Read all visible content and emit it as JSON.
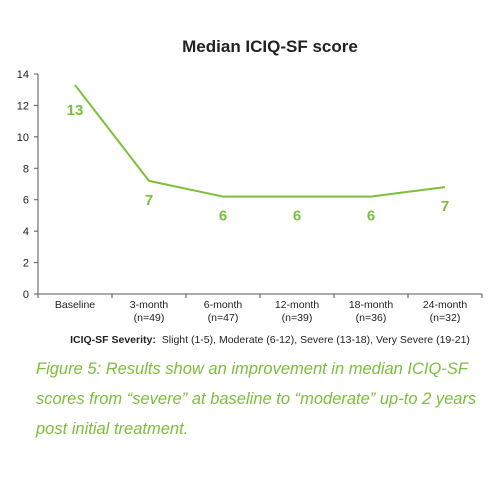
{
  "colors": {
    "line": "#7bbf3a",
    "axis": "#555555",
    "text": "#222222",
    "caption": "#7bbf3a"
  },
  "chart_data": {
    "type": "line",
    "title": "Median ICIQ-SF score",
    "xlabel": "",
    "ylabel": "",
    "categories": [
      "Baseline",
      "3-month",
      "6-month",
      "12-month",
      "18-month",
      "24-month"
    ],
    "category_sublabels": [
      "",
      "(n=49)",
      "(n=47)",
      "(n=39)",
      "(n=36)",
      "(n=32)"
    ],
    "series": [
      {
        "values": [
          13.3,
          7.2,
          6.2,
          6.2,
          6.2,
          6.8
        ]
      }
    ],
    "data_labels": [
      "13",
      "7",
      "6",
      "6",
      "6",
      "7"
    ],
    "ylim": [
      0,
      14
    ],
    "yticks": [
      0,
      2,
      4,
      6,
      8,
      10,
      12,
      14
    ],
    "grid": false,
    "legend": "none",
    "severity_label": "ICIQ-SF Severity:",
    "severity_text": "Slight (1-5), Moderate (6-12), Severe (13-18), Very Severe (19-21)"
  },
  "caption": "Figure 5: Results show an improvement in median ICIQ-SF scores from “severe” at baseline to “moderate” up-to 2 years post initial treatment."
}
